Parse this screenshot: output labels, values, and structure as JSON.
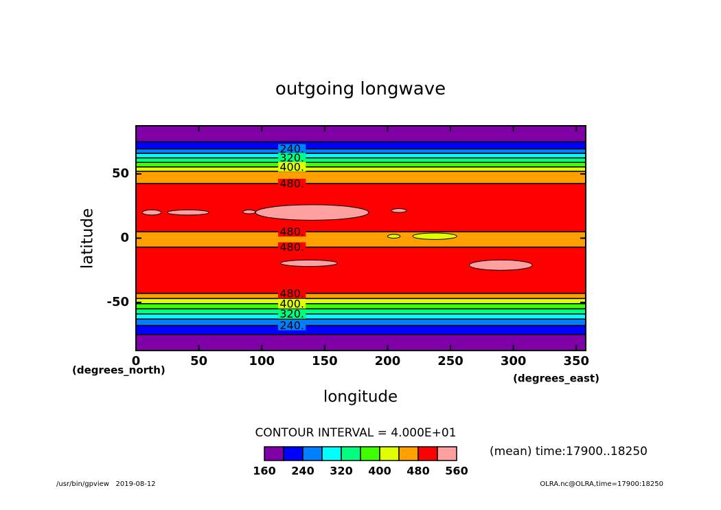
{
  "chart_data": {
    "type": "contour",
    "title": "outgoing longwave",
    "xlabel": "longitude",
    "ylabel": "latitude",
    "x_unit": "(degrees_east)",
    "y_unit": "(degrees_north)",
    "xlim": [
      0,
      357.5
    ],
    "ylim": [
      -87.5,
      87.5
    ],
    "xticks": [
      0,
      50,
      100,
      150,
      200,
      250,
      300,
      350
    ],
    "yticks": [
      -50,
      0,
      50
    ],
    "levels": [
      160,
      200,
      240,
      280,
      320,
      360,
      400,
      440,
      480,
      520,
      560
    ],
    "colors": [
      "#8000a8",
      "#0000ff",
      "#0080ff",
      "#00ffff",
      "#00ff80",
      "#40ff00",
      "#e0ff00",
      "#ffa000",
      "#ff0000",
      "#ffa0a0"
    ],
    "lat_edges": [
      87.5,
      75,
      69.5,
      66,
      62.5,
      59,
      55.5,
      52,
      42.5,
      5,
      -7,
      -43,
      -47,
      -51,
      -55,
      -59,
      -63,
      -68,
      -75,
      -87.5
    ],
    "values": [
      180,
      220,
      260,
      300,
      340,
      380,
      420,
      460,
      500,
      460,
      500,
      460,
      420,
      380,
      340,
      300,
      260,
      220,
      180
    ],
    "patches": [
      {
        "lon": [
          5,
          20
        ],
        "lat": [
          18,
          22
        ],
        "value": 540
      },
      {
        "lon": [
          25,
          58
        ],
        "lat": [
          18,
          22
        ],
        "value": 540
      },
      {
        "lon": [
          85,
          95
        ],
        "lat": [
          19,
          22
        ],
        "value": 540
      },
      {
        "lon": [
          95,
          185
        ],
        "lat": [
          14,
          26
        ],
        "value": 540
      },
      {
        "lon": [
          203,
          215
        ],
        "lat": [
          20,
          23
        ],
        "value": 540
      },
      {
        "lon": [
          115,
          160
        ],
        "lat": [
          -22,
          -17
        ],
        "value": 540
      },
      {
        "lon": [
          265,
          315
        ],
        "lat": [
          -25,
          -17
        ],
        "value": 540
      },
      {
        "lon": [
          200,
          210
        ],
        "lat": [
          0,
          3
        ],
        "value": 420
      },
      {
        "lon": [
          220,
          255
        ],
        "lat": [
          -1,
          4
        ],
        "value": 420
      }
    ],
    "contour_labels": [
      {
        "value": 240,
        "label": "240."
      },
      {
        "value": 320,
        "label": "320."
      },
      {
        "value": 400,
        "label": "400."
      },
      {
        "value": 480,
        "label": "480."
      }
    ],
    "contour_interval": "CONTOUR INTERVAL = 4.000E+01",
    "colorbar_ticks": [
      160,
      240,
      320,
      400,
      480,
      560
    ],
    "note": "(mean) time:17900..18250",
    "footer_left": "/usr/bin/gpview   2019-08-12",
    "footer_right": "OLRA.nc@OLRA,time=17900:18250"
  }
}
